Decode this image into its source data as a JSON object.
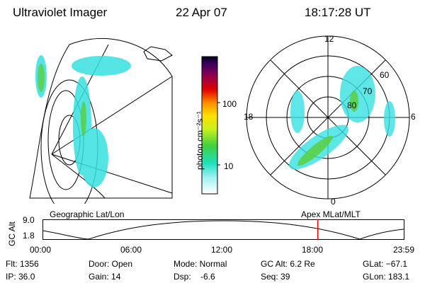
{
  "header": {
    "title": "Ultraviolet Imager",
    "date": "22 Apr 07",
    "time": "18:17:28 UT"
  },
  "colorbar": {
    "label": "photon cm⁻²s⁻¹",
    "ticks": [
      "100",
      "10"
    ]
  },
  "polar": {
    "top": "12",
    "left": "18",
    "right": "6",
    "bottom": "0",
    "lat_labels": [
      "60",
      "70",
      "80"
    ]
  },
  "timeline": {
    "left_title": "Geographic Lat/Lon",
    "right_title": "Apex  MLat/MLT",
    "ylabel": "GC Alt",
    "y_ticks": [
      "9.0",
      "1.8"
    ],
    "x_ticks": [
      "00:00",
      "06:00",
      "12:00",
      "18:00",
      "23:59"
    ],
    "current_hour": 18.29,
    "marker_color": "#ff0000"
  },
  "info": {
    "flt": "Flt: 1356",
    "ip": "IP: 36.0",
    "door": "Door: Open",
    "gain": "Gain: 14",
    "mode": "Mode: Normal",
    "dsp": "Dsp:    -6.6",
    "gcalt": "GC Alt: 6.2 Re",
    "seq": "Seq: 39",
    "glat": "GLat: −67.1",
    "glon": "GLon: 183.1"
  }
}
